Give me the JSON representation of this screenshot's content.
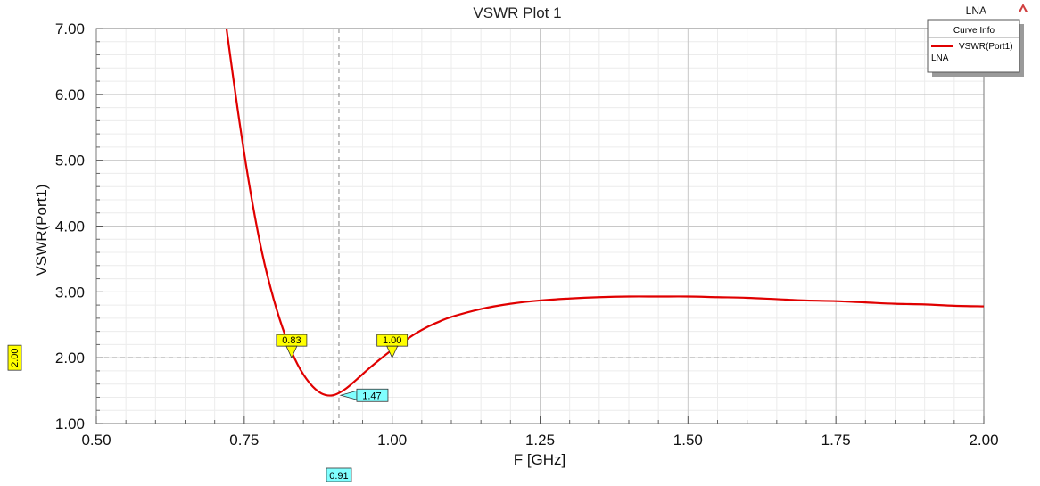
{
  "chart_data": {
    "type": "line",
    "title": "VSWR Plot 1",
    "xlabel": "F [GHz]",
    "ylabel": "VSWR(Port1)",
    "xlim": [
      0.5,
      2.0
    ],
    "ylim": [
      1.0,
      7.0
    ],
    "xticks": [
      "0.50",
      "0.75",
      "1.00",
      "1.25",
      "1.50",
      "1.75",
      "2.00"
    ],
    "yticks": [
      "1.00",
      "2.00",
      "3.00",
      "4.00",
      "5.00",
      "6.00",
      "7.00"
    ],
    "grid": true,
    "series": [
      {
        "name": "VSWR(Port1)",
        "color": "#e00000",
        "x": [
          0.72,
          0.74,
          0.76,
          0.78,
          0.8,
          0.82,
          0.84,
          0.86,
          0.88,
          0.9,
          0.92,
          0.94,
          0.96,
          0.98,
          1.0,
          1.02,
          1.04,
          1.06,
          1.08,
          1.1,
          1.15,
          1.2,
          1.25,
          1.3,
          1.35,
          1.4,
          1.45,
          1.5,
          1.55,
          1.6,
          1.65,
          1.7,
          1.75,
          1.8,
          1.85,
          1.9,
          1.95,
          2.0
        ],
        "y": [
          7.0,
          5.7,
          4.55,
          3.6,
          2.88,
          2.32,
          1.9,
          1.62,
          1.46,
          1.43,
          1.52,
          1.67,
          1.83,
          1.98,
          2.12,
          2.25,
          2.37,
          2.47,
          2.55,
          2.62,
          2.74,
          2.82,
          2.87,
          2.9,
          2.92,
          2.93,
          2.93,
          2.93,
          2.92,
          2.91,
          2.89,
          2.87,
          2.86,
          2.84,
          2.82,
          2.81,
          2.79,
          2.78
        ]
      }
    ],
    "markers": [
      {
        "label": "0.83",
        "x": 0.83,
        "y": 2.0,
        "color": "#ffff00"
      },
      {
        "label": "1.00",
        "x": 1.0,
        "y": 2.0,
        "color": "#ffff00"
      },
      {
        "label": "1.47",
        "x": 0.91,
        "y": 1.43,
        "color": "#80ffff"
      }
    ],
    "cursor_x": {
      "x": 0.91,
      "label": "0.91",
      "color": "#80ffff"
    },
    "cursor_y": {
      "y": 2.0,
      "label": "2.00",
      "color": "#ffff00"
    },
    "legend": {
      "title": "Curve Info",
      "entry": "VSWR(Port1)",
      "subtext": "LNA",
      "position": "top-right"
    },
    "corner_label": "LNA"
  }
}
